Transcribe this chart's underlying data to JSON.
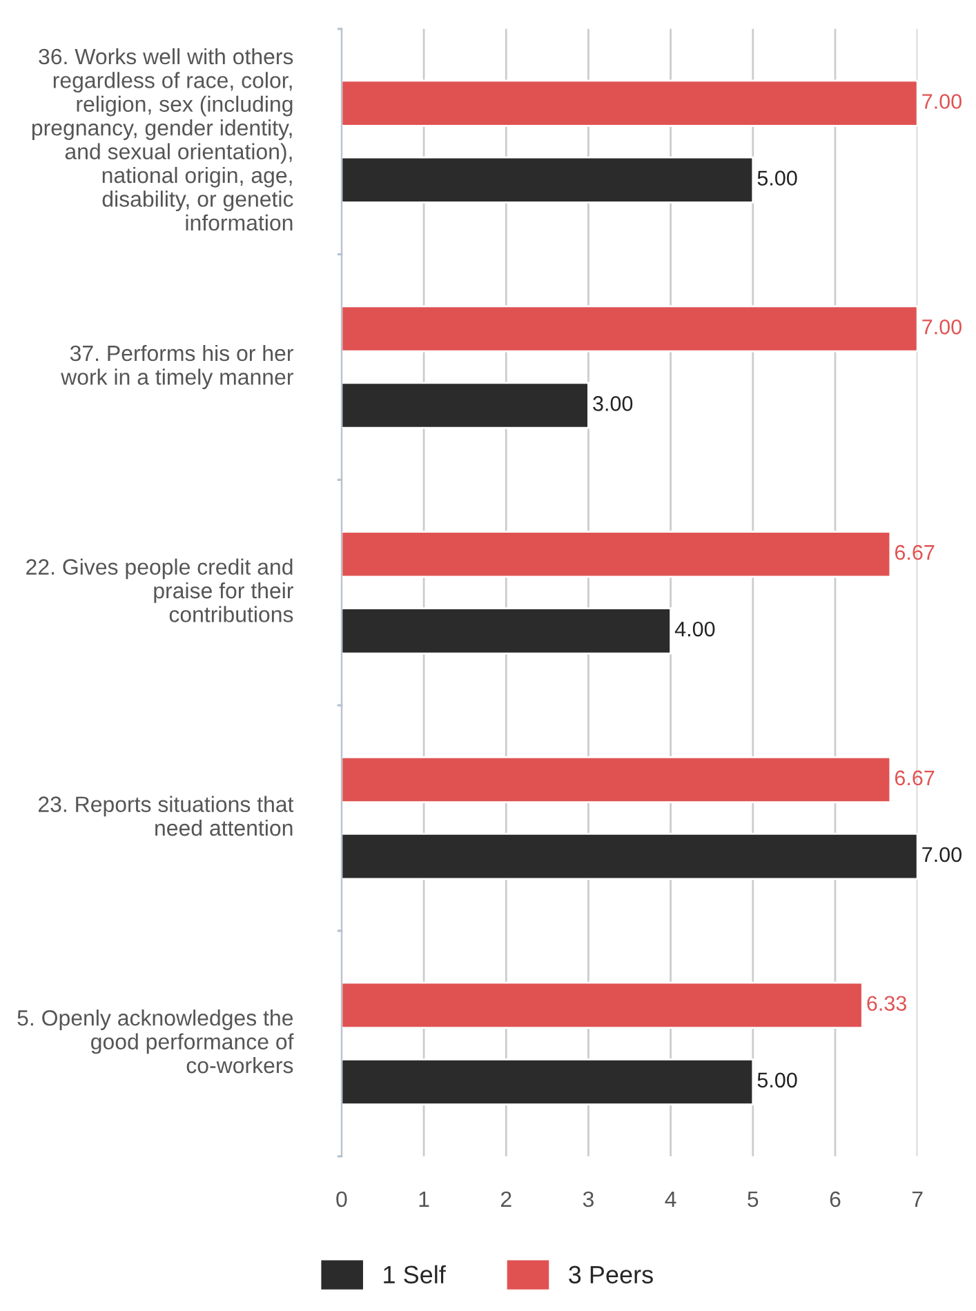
{
  "chart_data": {
    "type": "bar",
    "orientation": "horizontal",
    "categories": [
      "36. Works well with others regardless of race, color, religion, sex (including pregnancy, gender identity, and sexual orientation), national origin, age, disability, or genetic information",
      "37. Performs his or her work in a timely manner",
      "22. Gives people credit and praise for their contributions",
      "23. Reports situations that need attention",
      "5. Openly acknowledges the good performance of co-workers"
    ],
    "series": [
      {
        "name": "3 Peers",
        "color": "#e05252",
        "values": [
          7,
          7,
          6.67,
          6.67,
          6.33
        ],
        "value_labels": [
          "7.00",
          "7.00",
          "6.67",
          "6.67",
          "6.33"
        ]
      },
      {
        "name": "1 Self",
        "color": "#2b2b2b",
        "values": [
          5,
          3,
          4,
          7,
          5
        ],
        "value_labels": [
          "5.00",
          "3.00",
          "4.00",
          "7.00",
          "5.00"
        ]
      }
    ],
    "xlim": [
      0,
      7
    ],
    "xticks": [
      0,
      1,
      2,
      3,
      4,
      5,
      6,
      7
    ],
    "grid": "x",
    "legend": "bottom"
  }
}
